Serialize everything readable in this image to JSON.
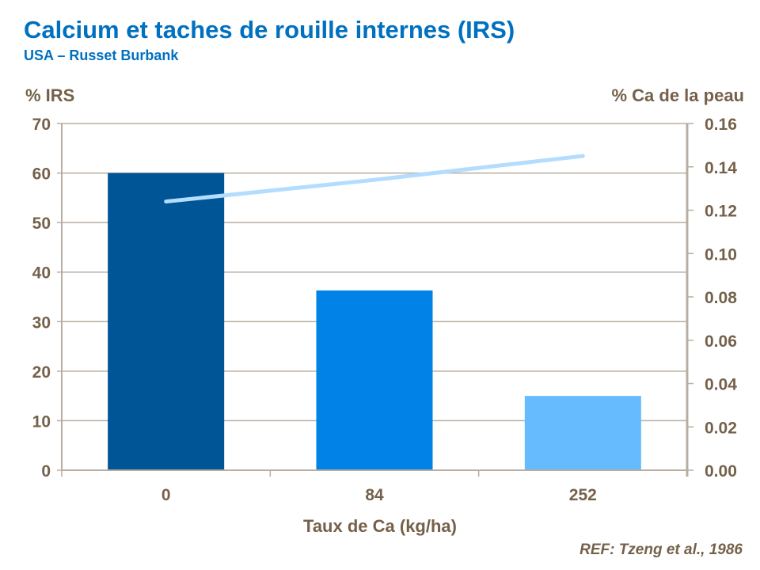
{
  "title": "Calcium et taches de rouille internes (IRS)",
  "subtitle": "USA  – Russet Burbank",
  "reference": "REF: Tzeng et al., 1986",
  "chart_data": {
    "type": "bar+line",
    "categories": [
      "0",
      "84",
      "252"
    ],
    "xlabel": "Taux de Ca (kg/ha)",
    "ylabel": "% IRS",
    "y2label": "% Ca de la peau",
    "ylim": [
      0,
      70
    ],
    "yticks": [
      "0",
      "10",
      "20",
      "30",
      "40",
      "50",
      "60",
      "70"
    ],
    "y2lim": [
      0,
      0.16
    ],
    "y2ticks": [
      "0.00",
      "0.02",
      "0.04",
      "0.06",
      "0.08",
      "0.10",
      "0.12",
      "0.14",
      "0.16"
    ],
    "grid": true,
    "bars": {
      "values": [
        60,
        36.3,
        15
      ],
      "colors": [
        "#005596",
        "#0082e6",
        "#66bbff"
      ]
    },
    "line": {
      "axis": "right",
      "values": [
        0.124,
        0.134,
        0.145
      ],
      "color": "#b3dcff"
    }
  }
}
